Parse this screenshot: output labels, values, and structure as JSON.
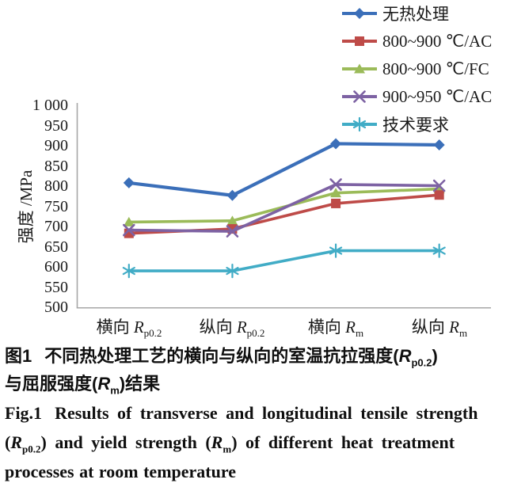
{
  "chart_data": {
    "type": "line",
    "title": "",
    "xlabel": "",
    "ylabel": "强度 /MPa",
    "ylim": [
      500,
      1000
    ],
    "ytick_step": 50,
    "ytick_labels": [
      "1 000",
      "950",
      "900",
      "850",
      "800",
      "750",
      "700",
      "650",
      "600",
      "550",
      "500"
    ],
    "grid": false,
    "legend_position": "top-right",
    "categories": [
      "横向 Rp0.2",
      "纵向 Rp0.2",
      "横向 Rm",
      "纵向 Rm"
    ],
    "category_parts": [
      {
        "prefix": "横向 ",
        "sym": "R",
        "sub": "p0.2"
      },
      {
        "prefix": "纵向 ",
        "sym": "R",
        "sub": "p0.2"
      },
      {
        "prefix": "横向 ",
        "sym": "R",
        "sub": "m"
      },
      {
        "prefix": "纵向 ",
        "sym": "R",
        "sub": "m"
      }
    ],
    "series": [
      {
        "name": "无热处理",
        "color": "#3B6FB9",
        "marker": "diamond",
        "values": [
          808,
          777,
          905,
          902
        ]
      },
      {
        "name": "800~900 ℃/AC",
        "color": "#BE4B48",
        "marker": "square",
        "values": [
          683,
          694,
          757,
          778
        ]
      },
      {
        "name": "800~900 ℃/FC",
        "color": "#9BBB59",
        "marker": "triangle",
        "values": [
          711,
          714,
          783,
          793
        ]
      },
      {
        "name": "900~950 ℃/AC",
        "color": "#7D62A3",
        "marker": "x",
        "values": [
          691,
          688,
          804,
          801
        ]
      },
      {
        "name": "技术要求",
        "color": "#41ACC6",
        "marker": "asterisk",
        "values": [
          590,
          590,
          640,
          640
        ]
      }
    ],
    "axis_color": "#a6a6a6"
  },
  "caption_cn": {
    "fig": "图1",
    "l1a": "不同热处理工艺的横向与纵向的室温抗拉强度(",
    "sym1": "R",
    "sub1": "p0.2",
    "l1b": ")",
    "l2a": "与屈服强度(",
    "sym2": "R",
    "sub2": "m",
    "l2b": ")结果"
  },
  "caption_en": {
    "fig": "Fig.1",
    "l1": "Results of transverse and longitudinal tensile strength",
    "l2a": "(",
    "sym1": "R",
    "sub1": "p0.2",
    "l2b": ") and yield strength (",
    "sym2": "R",
    "sub2": "m",
    "l2c": ") of different heat treatment",
    "l3": "processes at room temperature"
  }
}
